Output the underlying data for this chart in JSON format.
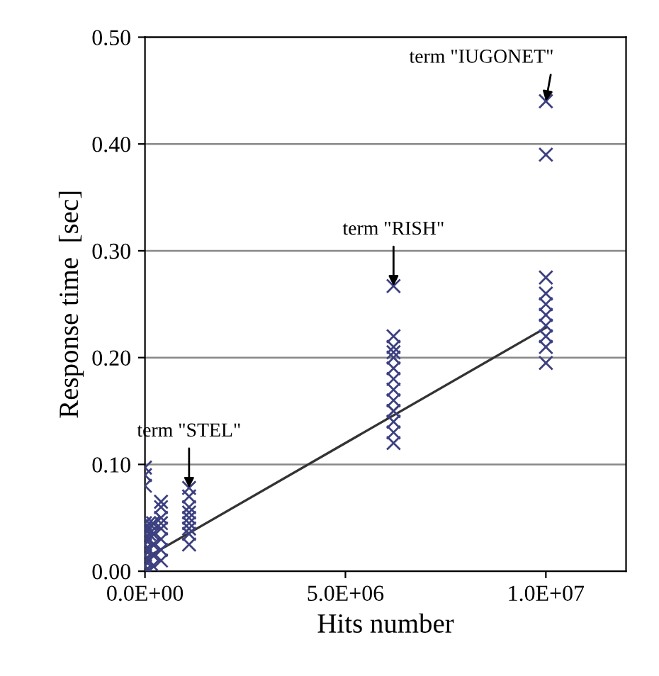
{
  "chart_data": {
    "type": "scatter",
    "xlabel": "Hits number",
    "ylabel": "Response time  [sec]",
    "xlim": [
      0,
      12000000
    ],
    "ylim": [
      0,
      0.5
    ],
    "xticks": [
      {
        "value": 0,
        "label": "0.0E+00"
      },
      {
        "value": 5000000,
        "label": "5.0E+06"
      },
      {
        "value": 10000000,
        "label": "1.0E+07"
      }
    ],
    "yticks": [
      {
        "value": 0,
        "label": "0.00"
      },
      {
        "value": 0.1,
        "label": "0.10"
      },
      {
        "value": 0.2,
        "label": "0.20"
      },
      {
        "value": 0.3,
        "label": "0.30"
      },
      {
        "value": 0.4,
        "label": "0.40"
      },
      {
        "value": 0.5,
        "label": "0.50"
      }
    ],
    "grid": "y",
    "marker": "cross",
    "series": [
      {
        "color": "#3c4080",
        "x": [
          0,
          0,
          0,
          0,
          0,
          0,
          0,
          0,
          0,
          0,
          0,
          0,
          0,
          100000,
          100000,
          100000,
          100000,
          100000,
          100000,
          100000,
          200000,
          200000,
          200000,
          200000,
          200000,
          400000,
          400000,
          400000,
          400000,
          400000,
          400000,
          400000,
          400000,
          1100000,
          1100000,
          1100000,
          1100000,
          1100000,
          1100000,
          1100000,
          1100000,
          1100000,
          6200000,
          6200000,
          6200000,
          6200000,
          6200000,
          6200000,
          6200000,
          6200000,
          6200000,
          6200000,
          6200000,
          6200000,
          6200000,
          6200000,
          10000000,
          10000000,
          10000000,
          10000000,
          10000000,
          10000000,
          10000000,
          10000000,
          10000000,
          10000000
        ],
        "values": [
          0.0,
          0.005,
          0.01,
          0.015,
          0.02,
          0.025,
          0.03,
          0.035,
          0.04,
          0.045,
          0.08,
          0.09,
          0.097,
          0.0,
          0.01,
          0.02,
          0.03,
          0.035,
          0.04,
          0.045,
          0.005,
          0.015,
          0.025,
          0.035,
          0.045,
          0.01,
          0.02,
          0.03,
          0.04,
          0.045,
          0.05,
          0.06,
          0.065,
          0.025,
          0.035,
          0.04,
          0.045,
          0.05,
          0.055,
          0.06,
          0.07,
          0.078,
          0.12,
          0.13,
          0.14,
          0.15,
          0.16,
          0.17,
          0.18,
          0.19,
          0.2,
          0.205,
          0.21,
          0.22,
          0.267,
          0.15,
          0.195,
          0.21,
          0.22,
          0.23,
          0.24,
          0.25,
          0.26,
          0.275,
          0.39,
          0.44
        ]
      },
      {
        "type": "line",
        "color": "#333333",
        "marker": "none",
        "x": [
          0,
          10000000
        ],
        "values": [
          0.012,
          0.228
        ]
      }
    ],
    "annotations": [
      {
        "text": "term \"STEL\"",
        "x": 1100000,
        "y": 0.078
      },
      {
        "text": "term \"RISH\"",
        "x": 6200000,
        "y": 0.267
      },
      {
        "text": "term \"IUGONET\"",
        "x": 10000000,
        "y": 0.44
      }
    ]
  }
}
